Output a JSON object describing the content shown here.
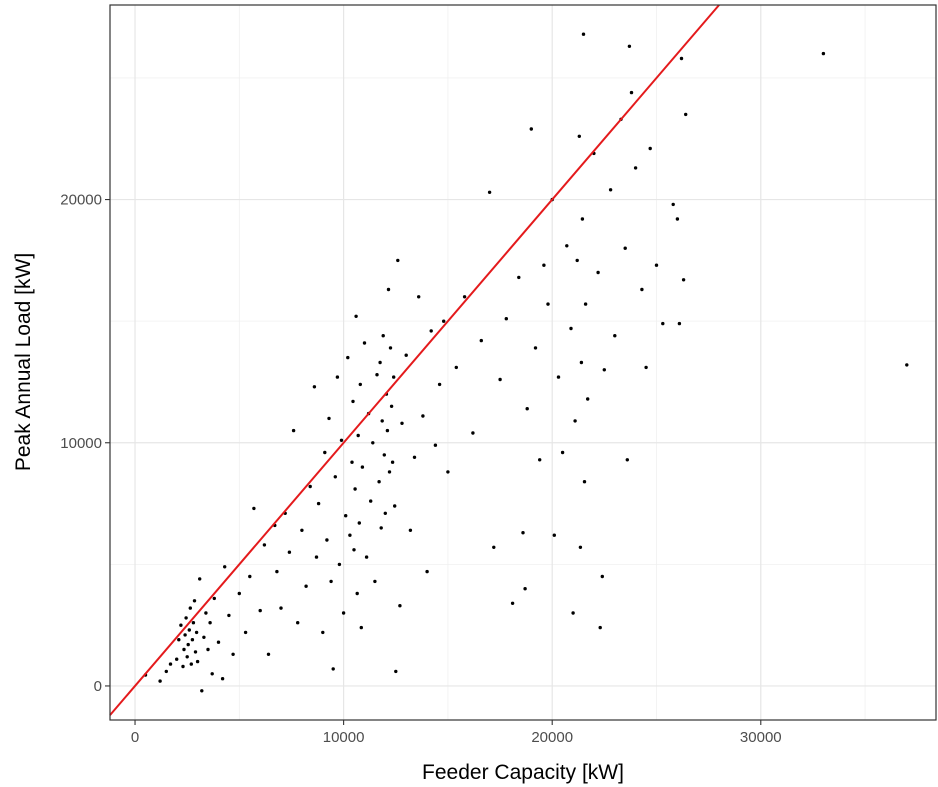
{
  "chart_data": {
    "type": "scatter",
    "title": "",
    "xlabel": "Feeder Capacity [kW]",
    "ylabel": "Peak Annual Load [kW]",
    "xlim": [
      -1200,
      38400
    ],
    "ylim": [
      -1400,
      28000
    ],
    "x_ticks": [
      0,
      10000,
      20000,
      30000
    ],
    "x_tick_labels": [
      "0",
      "10000",
      "20000",
      "30000"
    ],
    "y_ticks": [
      0,
      10000,
      20000
    ],
    "y_tick_labels": [
      "0",
      "10000",
      "20000"
    ],
    "grid": true,
    "legend": "none",
    "point_color": "#000000",
    "reference_line": {
      "slope": 1.0,
      "intercept": 0,
      "color": "#e41a1c"
    },
    "series": [
      {
        "points": [
          [
            500,
            450
          ],
          [
            1200,
            200
          ],
          [
            1500,
            600
          ],
          [
            1700,
            900
          ],
          [
            2000,
            1100
          ],
          [
            2100,
            1900
          ],
          [
            2200,
            2500
          ],
          [
            2300,
            800
          ],
          [
            2350,
            1500
          ],
          [
            2400,
            2100
          ],
          [
            2450,
            2800
          ],
          [
            2500,
            1200
          ],
          [
            2550,
            1700
          ],
          [
            2600,
            2300
          ],
          [
            2650,
            3200
          ],
          [
            2700,
            900
          ],
          [
            2750,
            1900
          ],
          [
            2800,
            2600
          ],
          [
            2850,
            3500
          ],
          [
            2900,
            1400
          ],
          [
            2950,
            2200
          ],
          [
            3000,
            1000
          ],
          [
            3100,
            4400
          ],
          [
            3200,
            -200
          ],
          [
            3300,
            2000
          ],
          [
            3400,
            3000
          ],
          [
            3500,
            1500
          ],
          [
            3600,
            2600
          ],
          [
            3700,
            500
          ],
          [
            3800,
            3600
          ],
          [
            4000,
            1800
          ],
          [
            4200,
            300
          ],
          [
            4300,
            4900
          ],
          [
            4500,
            2900
          ],
          [
            4700,
            1300
          ],
          [
            5000,
            3800
          ],
          [
            5300,
            2200
          ],
          [
            5500,
            4500
          ],
          [
            5700,
            7300
          ],
          [
            6000,
            3100
          ],
          [
            6200,
            5800
          ],
          [
            6400,
            1300
          ],
          [
            6700,
            6600
          ],
          [
            6800,
            4700
          ],
          [
            7000,
            3200
          ],
          [
            7200,
            7100
          ],
          [
            7400,
            5500
          ],
          [
            7600,
            10500
          ],
          [
            7800,
            2600
          ],
          [
            8000,
            6400
          ],
          [
            8200,
            4100
          ],
          [
            8400,
            8200
          ],
          [
            8600,
            12300
          ],
          [
            8700,
            5300
          ],
          [
            8800,
            7500
          ],
          [
            9000,
            2200
          ],
          [
            9100,
            9600
          ],
          [
            9200,
            6000
          ],
          [
            9300,
            11000
          ],
          [
            9400,
            4300
          ],
          [
            9500,
            700
          ],
          [
            9600,
            8600
          ],
          [
            9700,
            12700
          ],
          [
            9800,
            5000
          ],
          [
            9900,
            10100
          ],
          [
            10000,
            3000
          ],
          [
            10100,
            7000
          ],
          [
            10200,
            13500
          ],
          [
            10300,
            6200
          ],
          [
            10400,
            9200
          ],
          [
            10450,
            11700
          ],
          [
            10500,
            5600
          ],
          [
            10550,
            8100
          ],
          [
            10600,
            15200
          ],
          [
            10650,
            3800
          ],
          [
            10700,
            10300
          ],
          [
            10750,
            6700
          ],
          [
            10800,
            12400
          ],
          [
            10850,
            2400
          ],
          [
            10900,
            9000
          ],
          [
            11000,
            14100
          ],
          [
            11100,
            5300
          ],
          [
            11200,
            11200
          ],
          [
            11300,
            7600
          ],
          [
            11400,
            10000
          ],
          [
            11500,
            4300
          ],
          [
            11600,
            12800
          ],
          [
            11700,
            8400
          ],
          [
            11750,
            13300
          ],
          [
            11800,
            6500
          ],
          [
            11850,
            10900
          ],
          [
            11900,
            14400
          ],
          [
            11950,
            9500
          ],
          [
            12000,
            7100
          ],
          [
            12050,
            12000
          ],
          [
            12100,
            10500
          ],
          [
            12150,
            16300
          ],
          [
            12200,
            8800
          ],
          [
            12250,
            13900
          ],
          [
            12300,
            11500
          ],
          [
            12350,
            9200
          ],
          [
            12400,
            12700
          ],
          [
            12450,
            7400
          ],
          [
            12500,
            600
          ],
          [
            12600,
            17500
          ],
          [
            12700,
            3300
          ],
          [
            12800,
            10800
          ],
          [
            13000,
            13600
          ],
          [
            13200,
            6400
          ],
          [
            13400,
            9400
          ],
          [
            13600,
            16000
          ],
          [
            13800,
            11100
          ],
          [
            14000,
            4700
          ],
          [
            14200,
            14600
          ],
          [
            14400,
            9900
          ],
          [
            14600,
            12400
          ],
          [
            14800,
            15000
          ],
          [
            15000,
            8800
          ],
          [
            15400,
            13100
          ],
          [
            15800,
            16000
          ],
          [
            16200,
            10400
          ],
          [
            16600,
            14200
          ],
          [
            17000,
            20300
          ],
          [
            17200,
            5700
          ],
          [
            17500,
            12600
          ],
          [
            17800,
            15100
          ],
          [
            18100,
            3400
          ],
          [
            18400,
            16800
          ],
          [
            18600,
            6300
          ],
          [
            18700,
            4000
          ],
          [
            18800,
            11400
          ],
          [
            19000,
            22900
          ],
          [
            19200,
            13900
          ],
          [
            19400,
            9300
          ],
          [
            19600,
            17300
          ],
          [
            19800,
            15700
          ],
          [
            20000,
            20000
          ],
          [
            20100,
            6200
          ],
          [
            20300,
            12700
          ],
          [
            20500,
            9600
          ],
          [
            20700,
            18100
          ],
          [
            20900,
            14700
          ],
          [
            21000,
            3000
          ],
          [
            21100,
            10900
          ],
          [
            21200,
            17500
          ],
          [
            21300,
            22600
          ],
          [
            21350,
            5700
          ],
          [
            21400,
            13300
          ],
          [
            21450,
            19200
          ],
          [
            21500,
            26800
          ],
          [
            21550,
            8400
          ],
          [
            21600,
            15700
          ],
          [
            21700,
            11800
          ],
          [
            22000,
            21900
          ],
          [
            22200,
            17000
          ],
          [
            22300,
            2400
          ],
          [
            22400,
            4500
          ],
          [
            22500,
            13000
          ],
          [
            22800,
            20400
          ],
          [
            23000,
            14400
          ],
          [
            23300,
            23300
          ],
          [
            23500,
            18000
          ],
          [
            23600,
            9300
          ],
          [
            23700,
            26300
          ],
          [
            23800,
            24400
          ],
          [
            24000,
            21300
          ],
          [
            24300,
            16300
          ],
          [
            24500,
            13100
          ],
          [
            24700,
            22100
          ],
          [
            25000,
            17300
          ],
          [
            25300,
            14900
          ],
          [
            25800,
            19800
          ],
          [
            26000,
            19200
          ],
          [
            26100,
            14900
          ],
          [
            26200,
            25800
          ],
          [
            26300,
            16700
          ],
          [
            26400,
            23500
          ],
          [
            33000,
            26000
          ],
          [
            37000,
            13200
          ]
        ]
      }
    ]
  }
}
